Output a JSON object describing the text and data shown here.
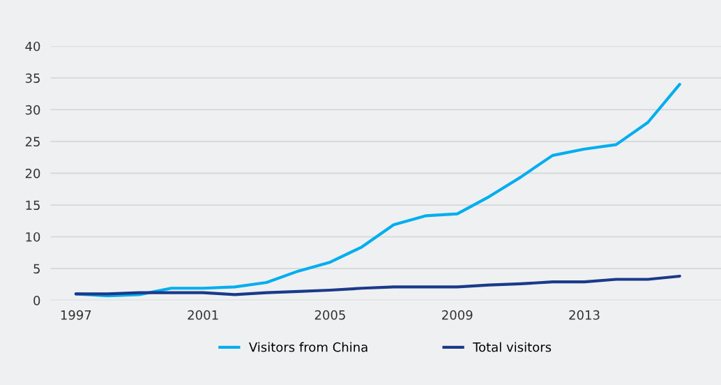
{
  "chart_data": {
    "type": "line",
    "x": [
      1997,
      1998,
      1999,
      2000,
      2001,
      2002,
      2003,
      2004,
      2005,
      2006,
      2007,
      2008,
      2009,
      2010,
      2011,
      2012,
      2013,
      2014,
      2015,
      2016
    ],
    "series": [
      {
        "name": "Visitors from China",
        "color": "#00aeef",
        "values": [
          1.0,
          0.7,
          0.9,
          1.9,
          1.9,
          2.1,
          2.8,
          4.6,
          6.0,
          8.4,
          11.9,
          13.3,
          13.6,
          16.3,
          19.4,
          22.8,
          23.8,
          24.5,
          28.0,
          34.0
        ]
      },
      {
        "name": "Total visitors",
        "color": "#1a3a8a",
        "values": [
          1.0,
          1.0,
          1.2,
          1.2,
          1.2,
          0.9,
          1.2,
          1.4,
          1.6,
          1.9,
          2.1,
          2.1,
          2.1,
          2.4,
          2.6,
          2.9,
          2.9,
          3.3,
          3.3,
          3.8
        ]
      }
    ],
    "xlim": [
      1996.2,
      2017.3
    ],
    "xticks": [
      1997,
      2001,
      2005,
      2009,
      2013
    ],
    "ylim": [
      0,
      40
    ],
    "yticks": [
      0,
      5,
      10,
      15,
      20,
      25,
      30,
      35,
      40
    ],
    "grid": "y",
    "legend": "bottom",
    "marker": "none",
    "line_style": "solid"
  }
}
